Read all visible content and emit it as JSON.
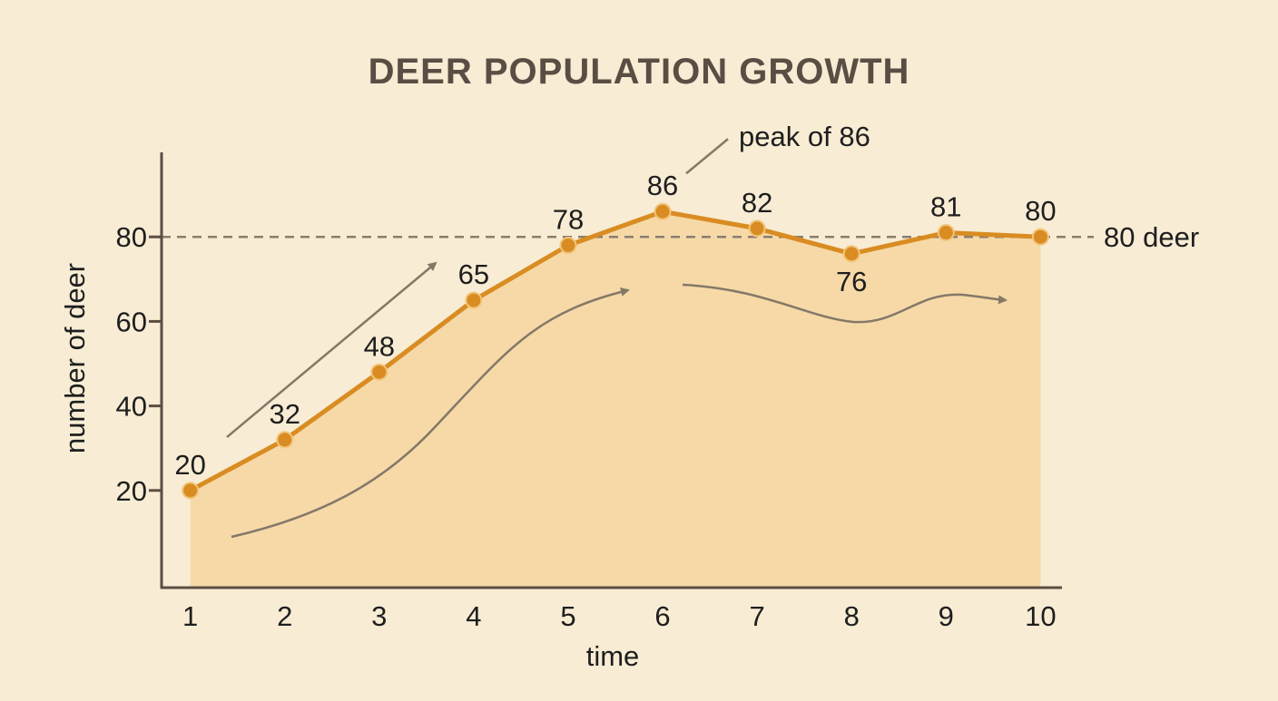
{
  "chart_data": {
    "type": "line",
    "title": "DEER POPULATION GROWTH",
    "xlabel": "time",
    "ylabel": "number of deer",
    "x": [
      1,
      2,
      3,
      4,
      5,
      6,
      7,
      8,
      9,
      10
    ],
    "y": [
      20,
      32,
      48,
      65,
      78,
      86,
      82,
      76,
      81,
      80
    ],
    "y_ticks": [
      20,
      40,
      60,
      80
    ],
    "x_ticks": [
      1,
      2,
      3,
      4,
      5,
      6,
      7,
      8,
      9,
      10
    ],
    "ylim": [
      -3,
      100
    ],
    "xlim": [
      0.35,
      10.65
    ],
    "grid": false,
    "area_fill": true,
    "reference_line": {
      "y": 80,
      "label": "80 deer"
    },
    "annotations": [
      {
        "text": "peak of 86",
        "x": 6,
        "y": 86
      }
    ],
    "colors": {
      "background": "#f8ecd4",
      "line": "#d98c22",
      "fill": "#f5d8a4",
      "axis": "#5a4e44",
      "arrows": "#847868",
      "title": "#5a4e44",
      "text": "#1e1e1e"
    }
  }
}
